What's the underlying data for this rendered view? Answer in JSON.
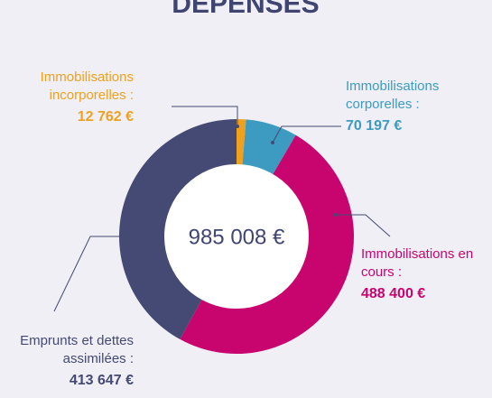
{
  "chart_data": {
    "type": "donut",
    "title": "DEPENSES",
    "categories": [
      "Immobilisations incorporelles :",
      "Immobilisations corporelles :",
      "Immobilisations en cours :",
      "Emprunts et dettes assimilées :"
    ],
    "values": [
      12762,
      70197,
      488400,
      413647
    ],
    "value_labels": [
      "12 762 €",
      "70 197 €",
      "488 400 €",
      "413 647 €"
    ],
    "colors": [
      "#efa11e",
      "#3d9ac0",
      "#c8046f",
      "#444a73"
    ],
    "total": {
      "value": 985008,
      "label": "985 008 €"
    }
  }
}
